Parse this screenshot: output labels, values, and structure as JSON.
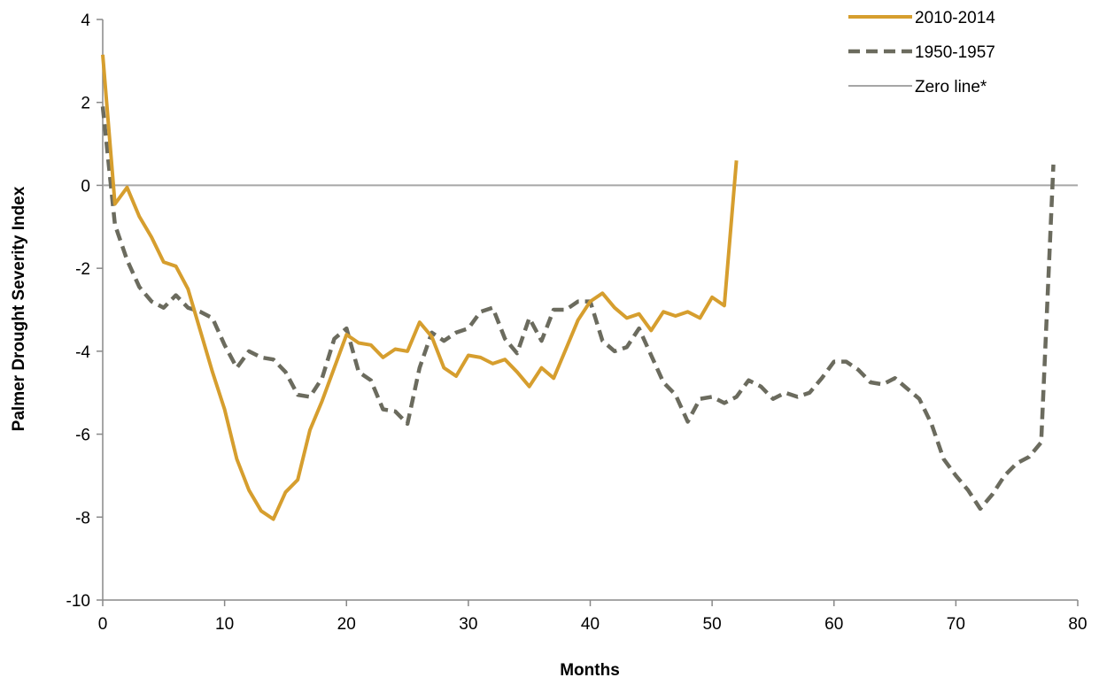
{
  "chart_data": {
    "type": "line",
    "title": "",
    "xlabel": "Months",
    "ylabel": "Palmer Drought Severity Index",
    "xlim": [
      0,
      80
    ],
    "ylim": [
      -10,
      4
    ],
    "x_ticks": [
      0,
      10,
      20,
      30,
      40,
      50,
      60,
      70,
      80
    ],
    "y_ticks": [
      4,
      2,
      0,
      -2,
      -4,
      -6,
      -8,
      -10
    ],
    "grid": false,
    "legend_position": "top-right",
    "series": [
      {
        "name": "2010-2014",
        "style": "solid",
        "color": "#D69E2E",
        "x": [
          0,
          1,
          2,
          3,
          4,
          5,
          6,
          7,
          8,
          9,
          10,
          11,
          12,
          13,
          14,
          15,
          16,
          17,
          18,
          19,
          20,
          21,
          22,
          23,
          24,
          25,
          26,
          27,
          28,
          29,
          30,
          31,
          32,
          33,
          34,
          35,
          36,
          37,
          38,
          39,
          40,
          41,
          42,
          43,
          44,
          45,
          46,
          47,
          48,
          49,
          50,
          51,
          52
        ],
        "y": [
          3.15,
          -0.45,
          -0.05,
          -0.75,
          -1.25,
          -1.85,
          -1.95,
          -2.5,
          -3.5,
          -4.5,
          -5.4,
          -6.6,
          -7.35,
          -7.85,
          -8.05,
          -7.4,
          -7.1,
          -5.9,
          -5.2,
          -4.4,
          -3.6,
          -3.8,
          -3.85,
          -4.15,
          -3.95,
          -4.0,
          -3.3,
          -3.65,
          -4.4,
          -4.6,
          -4.1,
          -4.15,
          -4.3,
          -4.2,
          -4.5,
          -4.85,
          -4.4,
          -4.65,
          -3.95,
          -3.25,
          -2.8,
          -2.6,
          -2.95,
          -3.2,
          -3.1,
          -3.5,
          -3.05,
          -3.15,
          -3.05,
          -3.2,
          -2.7,
          -2.9,
          0.6
        ]
      },
      {
        "name": "1950-1957",
        "style": "dashed",
        "color": "#6B6B5E",
        "x": [
          0,
          1,
          2,
          3,
          4,
          5,
          6,
          7,
          8,
          9,
          10,
          11,
          12,
          13,
          14,
          15,
          16,
          17,
          18,
          19,
          20,
          21,
          22,
          23,
          24,
          25,
          26,
          27,
          28,
          29,
          30,
          31,
          32,
          33,
          34,
          35,
          36,
          37,
          38,
          39,
          40,
          41,
          42,
          43,
          44,
          45,
          46,
          47,
          48,
          49,
          50,
          51,
          52,
          53,
          54,
          55,
          56,
          57,
          58,
          59,
          60,
          61,
          62,
          63,
          64,
          65,
          66,
          67,
          68,
          69,
          70,
          71,
          72,
          73,
          74,
          75,
          76,
          77,
          78
        ],
        "y": [
          1.9,
          -0.95,
          -1.8,
          -2.45,
          -2.8,
          -2.95,
          -2.65,
          -2.95,
          -3.05,
          -3.2,
          -3.85,
          -4.4,
          -4.0,
          -4.15,
          -4.2,
          -4.5,
          -5.05,
          -5.1,
          -4.65,
          -3.7,
          -3.45,
          -4.5,
          -4.7,
          -5.4,
          -5.45,
          -5.75,
          -4.4,
          -3.55,
          -3.75,
          -3.55,
          -3.45,
          -3.05,
          -2.95,
          -3.7,
          -4.05,
          -3.2,
          -3.75,
          -3.0,
          -3.0,
          -2.8,
          -2.8,
          -3.75,
          -4.0,
          -3.9,
          -3.45,
          -4.1,
          -4.75,
          -5.05,
          -5.7,
          -5.15,
          -5.1,
          -5.25,
          -5.1,
          -4.7,
          -4.85,
          -5.15,
          -5.0,
          -5.1,
          -5.0,
          -4.65,
          -4.25,
          -4.25,
          -4.45,
          -4.75,
          -4.8,
          -4.65,
          -4.9,
          -5.15,
          -5.75,
          -6.6,
          -7.0,
          -7.35,
          -7.8,
          -7.45,
          -7.0,
          -6.7,
          -6.55,
          -6.2,
          0.5
        ]
      }
    ],
    "reference_lines": [
      {
        "name": "Zero line*",
        "y": 0,
        "color": "#A6A6A6"
      }
    ]
  }
}
